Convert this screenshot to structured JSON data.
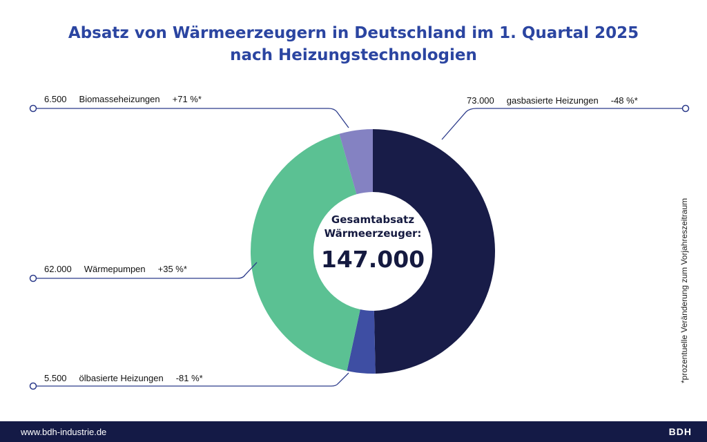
{
  "title": [
    "Absatz von Wärmeerzeugern in Deutschland im 1. Quartal 2025",
    "nach Heizungstechnologien"
  ],
  "center": {
    "line1": "Gesamtabsatz",
    "line2": "Wärmeerzeuger:",
    "total": "147.000"
  },
  "note": "*prozentuelle Veränderung zum Vorjahreszeitraum",
  "footer": {
    "url": "www.bdh-industrie.de",
    "logo": "BDH"
  },
  "chart_data": {
    "type": "pie",
    "style": "donut",
    "start": "12 o'clock, clockwise",
    "total": 147000,
    "series": [
      {
        "name": "gasbasierte Heizungen",
        "value": 73000,
        "value_label": "73.000",
        "change": "-48 %*",
        "color": "#181c48"
      },
      {
        "name": "ölbasierte Heizungen",
        "value": 5500,
        "value_label": "5.500",
        "change": "-81 %*",
        "color": "#3e4ea3"
      },
      {
        "name": "Wärmepumpen",
        "value": 62000,
        "value_label": "62.000",
        "change": "+35 %*",
        "color": "#5bc193"
      },
      {
        "name": "Biomasseheizungen",
        "value": 6500,
        "value_label": "6.500",
        "change": "+71 %*",
        "color": "#8482c2"
      }
    ]
  }
}
